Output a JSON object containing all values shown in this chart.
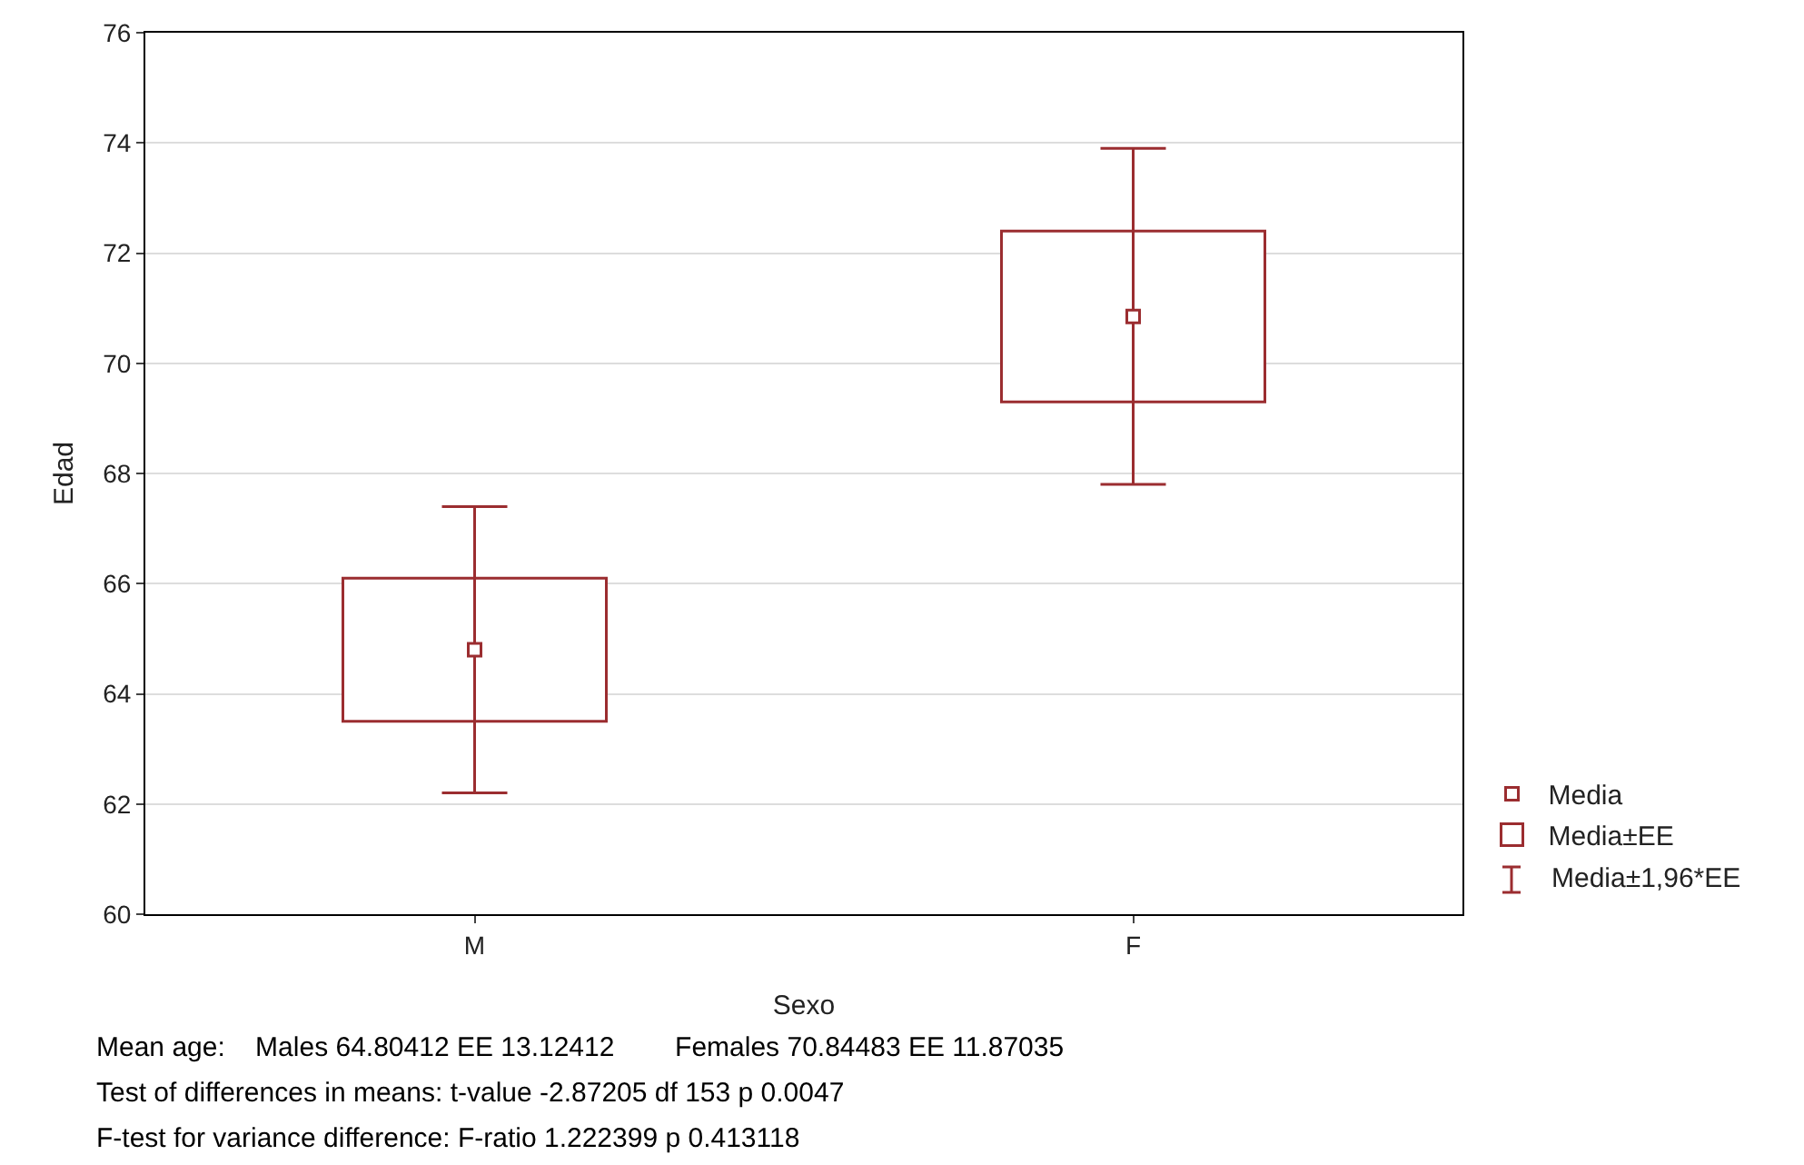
{
  "chart_data": {
    "type": "bar",
    "xlabel": "Sexo",
    "ylabel": "Edad",
    "categories": [
      "M",
      "F"
    ],
    "series": [
      {
        "name": "Media",
        "type": "scatter",
        "marker": "square",
        "color": "#9b2d30",
        "values": [
          64.8,
          70.85
        ],
        "errors": [
          [
            62.2,
            67.4
          ],
          [
            67.8,
            73.9
          ]
        ]
      },
      {
        "name": "Media±EE",
        "type": "bar",
        "color": "#9b2d30",
        "base": [
          63.5,
          69.3
        ],
        "values": [
          2.6,
          3.1
        ]
      }
    ],
    "ylim": [
      60,
      76
    ],
    "yticks": [
      60,
      62,
      64,
      66,
      68,
      70,
      72,
      74,
      76
    ],
    "grid": "y",
    "legend": "bottom right",
    "annotations": [
      "Media±1,96*EE",
      "Mean age:    Males 64.80412 EE 13.12412        Females 70.84483 EE 11.87035",
      "Test of differences in means: t-value -2.87205 df 153 p 0.0047",
      "F-test for variance difference: F-ratio 1.222399 p 0.413118"
    ]
  }
}
